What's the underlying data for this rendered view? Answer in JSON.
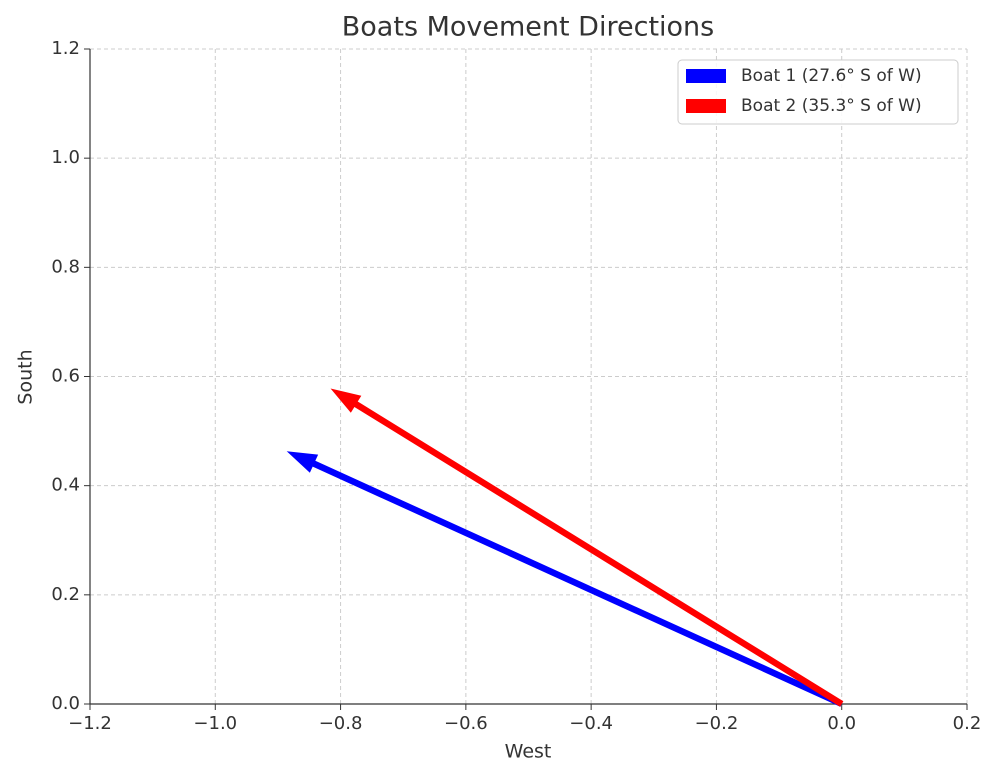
{
  "chart_data": {
    "type": "quiver",
    "title": "Boats Movement Directions",
    "x_label": "West",
    "y_label": "South",
    "series": [
      {
        "name": "Boat 1 (27.6° S of W)",
        "color": "#0000ff",
        "dx": -0.886,
        "dy": 0.463
      },
      {
        "name": "Boat 2 (35.3° S of W)",
        "color": "#ff0000",
        "dx": -0.816,
        "dy": 0.578
      }
    ],
    "xlim": [
      -1.2,
      0.2
    ],
    "xticks": [
      {
        "value": -1.2,
        "label": "−1.2"
      },
      {
        "value": -1.0,
        "label": "−1.0"
      },
      {
        "value": -0.8,
        "label": "−0.8"
      },
      {
        "value": -0.6,
        "label": "−0.6"
      },
      {
        "value": -0.4,
        "label": "−0.4"
      },
      {
        "value": -0.2,
        "label": "−0.2"
      },
      {
        "value": 0,
        "label": "0.0"
      },
      0.2
    ],
    "ylim": [
      0,
      1.2
    ],
    "yticks": [
      {
        "value": 0,
        "label": "0.0"
      },
      0.2,
      0.4,
      0.6,
      0.8,
      {
        "value": 1,
        "label": "1.0"
      },
      1.2
    ],
    "grid": true,
    "legend": "upper-right"
  }
}
